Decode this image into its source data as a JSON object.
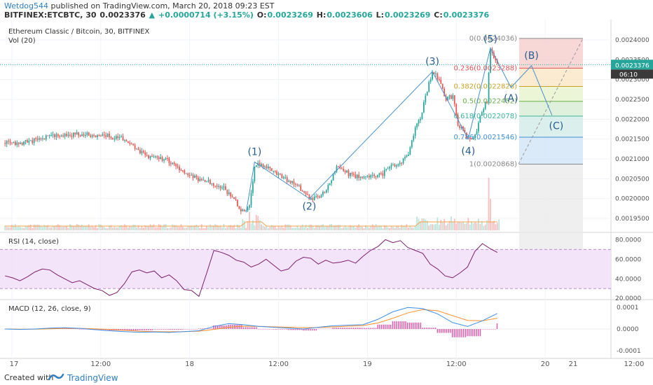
{
  "header": {
    "author": "Wetdog544",
    "published_text": "published on TradingView.com, March 20, 2018 09:23 EST",
    "symbol_line": "BITFINEX:ETCBTC, 30",
    "last": "0.0023376",
    "change": "+0.0000714 (+3.15%)",
    "open_label": "O:",
    "open": "0.0023269",
    "high_label": "H:",
    "high": "0.0023606",
    "low_label": "L:",
    "low": "0.0023269",
    "close_label": "C:",
    "close": "0.0023376"
  },
  "footer": {
    "created_with": "Created with",
    "brand": "TradingView"
  },
  "chart_data": [
    {
      "type": "candlestick",
      "title": "Ethereum Classic / Bitcoin, 30, BITFINEX",
      "subtitle": "Vol (20)",
      "ylim": [
        0.00192,
        0.002437
      ],
      "y_ticks": [
        "0.0024000",
        "0.0023500",
        "0.0023000",
        "0.0022500",
        "0.0022000",
        "0.0021500",
        "0.0021000",
        "0.0020500",
        "0.0020000",
        "0.0019500"
      ],
      "y_tick_values": [
        0.0024,
        0.00235,
        0.0023,
        0.00225,
        0.0022,
        0.00215,
        0.0021,
        0.00205,
        0.002,
        0.00195
      ],
      "x_ticks": [
        "17",
        "12:00",
        "18",
        "12:00",
        "19",
        "12:00",
        "20",
        "12:00",
        "21"
      ],
      "current_price_label": "0.0023376",
      "countdown_label": "06:10",
      "price_path": [
        [
          0,
          0.00214
        ],
        [
          8,
          0.002138
        ],
        [
          18,
          0.002148
        ],
        [
          30,
          0.00216
        ],
        [
          45,
          0.002162
        ],
        [
          60,
          0.002158
        ],
        [
          70,
          0.00215
        ],
        [
          78,
          0.00212
        ],
        [
          85,
          0.002105
        ],
        [
          95,
          0.002098
        ],
        [
          103,
          0.00207
        ],
        [
          112,
          0.00205
        ],
        [
          120,
          0.00204
        ],
        [
          128,
          0.002025
        ],
        [
          134,
          0.002
        ],
        [
          138,
          0.00197
        ],
        [
          141,
          0.001965
        ],
        [
          143,
          0.00198
        ],
        [
          146,
          0.002075
        ],
        [
          148,
          0.002092
        ],
        [
          150,
          0.002085
        ],
        [
          156,
          0.00207
        ],
        [
          163,
          0.00205
        ],
        [
          170,
          0.00204
        ],
        [
          178,
          0.002
        ],
        [
          183,
          0.002005
        ],
        [
          188,
          0.00202
        ],
        [
          194,
          0.00208
        ],
        [
          198,
          0.00207
        ],
        [
          204,
          0.002055
        ],
        [
          212,
          0.002055
        ],
        [
          220,
          0.00206
        ],
        [
          226,
          0.00208
        ],
        [
          232,
          0.00209
        ],
        [
          236,
          0.002115
        ],
        [
          240,
          0.00218
        ],
        [
          243,
          0.0022
        ],
        [
          247,
          0.002275
        ],
        [
          250,
          0.00232
        ],
        [
          254,
          0.0023
        ],
        [
          258,
          0.00225
        ],
        [
          262,
          0.00226
        ],
        [
          265,
          0.00218
        ],
        [
          268,
          0.002175
        ],
        [
          271,
          0.00215
        ],
        [
          275,
          0.00216
        ],
        [
          279,
          0.00222
        ],
        [
          282,
          0.002245
        ],
        [
          284,
          0.00238
        ],
        [
          286,
          0.00236
        ],
        [
          288,
          0.002338
        ]
      ],
      "volume_note": "Vol (20) histogram with moving average",
      "fibonacci": {
        "levels": [
          {
            "ratio": "0",
            "value": "0.0024036",
            "price": 0.0024036
          },
          {
            "ratio": "0.236",
            "value": "0.0023288",
            "price": 0.0023288
          },
          {
            "ratio": "0.382",
            "value": "0.0022826",
            "price": 0.0022826
          },
          {
            "ratio": "0.5",
            "value": "0.0022452",
            "price": 0.0022452
          },
          {
            "ratio": "0.618",
            "value": "0.0022078",
            "price": 0.0022078
          },
          {
            "ratio": "0.786",
            "value": "0.0021546",
            "price": 0.0021546
          },
          {
            "ratio": "1",
            "value": "0.0020868",
            "price": 0.0020868
          }
        ],
        "zone_colors": [
          "#f6c9c9",
          "#f9e4c2",
          "#e6f2c8",
          "#d4ecd0",
          "#cfe9e6",
          "#cfe3f5",
          "#e9e9e9",
          "#dcdcf5"
        ]
      },
      "waves": [
        {
          "label": "(1)",
          "bar": 146,
          "price": 0.002092
        },
        {
          "label": "(2)",
          "bar": 178,
          "price": 0.002
        },
        {
          "label": "(3)",
          "bar": 250,
          "price": 0.00232
        },
        {
          "label": "(4)",
          "bar": 271,
          "price": 0.00215
        },
        {
          "label": "(5)",
          "bar": 284,
          "price": 0.00238
        },
        {
          "label": "(A)",
          "bar": 296,
          "price": 0.00228
        },
        {
          "label": "(B)",
          "bar": 308,
          "price": 0.002335
        },
        {
          "label": "(C)",
          "bar": 320,
          "price": 0.00221
        }
      ],
      "colors": {
        "up": "#26a69a",
        "down": "#ef5350",
        "wave": "#4a90c9",
        "last": "#26a69a"
      }
    },
    {
      "type": "line",
      "title": "RSI (14, close)",
      "ylim": [
        18,
        86
      ],
      "y_ticks": [
        "80.0000",
        "60.0000",
        "40.0000",
        "20.0000"
      ],
      "y_tick_values": [
        80,
        60,
        40,
        20
      ],
      "band": [
        30,
        70
      ],
      "values": [
        43,
        41,
        38,
        42,
        47,
        50,
        49,
        44,
        40,
        36,
        38,
        34,
        30,
        28,
        23,
        26,
        35,
        47,
        49,
        46,
        48,
        41,
        44,
        38,
        29,
        28,
        22,
        45,
        69,
        67,
        64,
        59,
        57,
        52,
        55,
        60,
        54,
        48,
        50,
        58,
        62,
        61,
        55,
        59,
        56,
        57,
        59,
        56,
        63,
        69,
        73,
        80,
        77,
        79,
        72,
        69,
        66,
        55,
        50,
        43,
        41,
        46,
        52,
        68,
        76,
        71,
        67
      ],
      "colors": {
        "line": "#7b1f6a",
        "band": "#f0ddf7"
      }
    },
    {
      "type": "macd",
      "title": "MACD (12, 26, close, 9)",
      "ylim": [
        -0.00013,
        0.00013
      ],
      "y_ticks": [
        "0.0001",
        "0.0000",
        "-0.0001"
      ],
      "y_tick_values": [
        0.0001,
        0,
        -0.0001
      ],
      "macd": [
        0,
        -2e-06,
        0,
        4e-06,
        6e-06,
        3e-06,
        -3e-06,
        -8e-06,
        -1.2e-05,
        -1.5e-05,
        -1.4e-05,
        -1.6e-05,
        -1.2e-05,
        -8e-06,
        1.2e-05,
        2.5e-05,
        2e-05,
        1.2e-05,
        8e-06,
        4e-06,
        0,
        8e-06,
        1.5e-05,
        1.8e-05,
        2e-05,
        4.5e-05,
        8e-05,
        0.0001,
        9.5e-05,
        7e-05,
        3e-05,
        1.2e-05,
        3.8e-05,
        7.2e-05
      ],
      "signal": [
        0,
        -1e-06,
        -1e-06,
        1e-06,
        3e-06,
        3e-06,
        1e-06,
        -2e-06,
        -6e-06,
        -1e-05,
        -1.2e-05,
        -1.3e-05,
        -1.2e-05,
        -1e-05,
        -2e-06,
        8e-06,
        1.3e-05,
        1.2e-05,
        1e-05,
        8e-06,
        6e-06,
        7e-06,
        1e-05,
        1.3e-05,
        1.6e-05,
        2.8e-05,
        5e-05,
        7.5e-05,
        9e-05,
        8.5e-05,
        6.2e-05,
        4e-05,
        3.8e-05,
        5e-05
      ],
      "colors": {
        "macd": "#3f8fe6",
        "signal": "#ff8f2b",
        "hist": "#d81b8c"
      }
    }
  ]
}
